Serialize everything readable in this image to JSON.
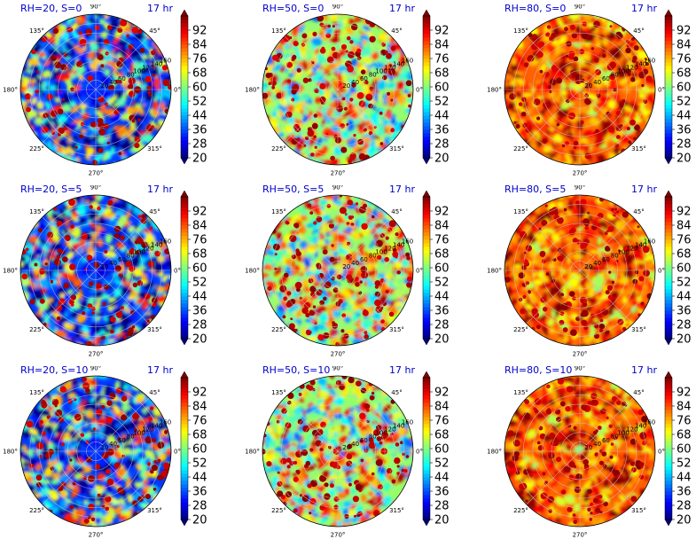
{
  "chart_data": [
    {
      "type": "heatmap",
      "projection": "polar",
      "title": "RH=20, S=0",
      "time_label": "17 hr",
      "humidity": 20,
      "s": 0
    },
    {
      "type": "heatmap",
      "projection": "polar",
      "title": "RH=50, S=0",
      "time_label": "17 hr",
      "humidity": 50,
      "s": 0
    },
    {
      "type": "heatmap",
      "projection": "polar",
      "title": "RH=80, S=0",
      "time_label": "17 hr",
      "humidity": 80,
      "s": 0
    },
    {
      "type": "heatmap",
      "projection": "polar",
      "title": "RH=20, S=5",
      "time_label": "17 hr",
      "humidity": 20,
      "s": 5
    },
    {
      "type": "heatmap",
      "projection": "polar",
      "title": "RH=50, S=5",
      "time_label": "17 hr",
      "humidity": 50,
      "s": 5
    },
    {
      "type": "heatmap",
      "projection": "polar",
      "title": "RH=80, S=5",
      "time_label": "17 hr",
      "humidity": 80,
      "s": 5
    },
    {
      "type": "heatmap",
      "projection": "polar",
      "title": "RH=20, S=10",
      "time_label": "17 hr",
      "humidity": 20,
      "s": 10
    },
    {
      "type": "heatmap",
      "projection": "polar",
      "title": "RH=50, S=10",
      "time_label": "17 hr",
      "humidity": 50,
      "s": 10
    },
    {
      "type": "heatmap",
      "projection": "polar",
      "title": "RH=80, S=10",
      "time_label": "17 hr",
      "humidity": 80,
      "s": 10
    }
  ],
  "common": {
    "angle_ticks": [
      "0°",
      "45°",
      "90°",
      "135°",
      "180°",
      "225°",
      "270°",
      "315°"
    ],
    "radial_ticks": [
      "20",
      "40",
      "60",
      "80",
      "100",
      "120",
      "140",
      "160"
    ],
    "radial_range": [
      0,
      160
    ],
    "colorbar": {
      "ticks": [
        "20",
        "28",
        "36",
        "44",
        "52",
        "60",
        "68",
        "76",
        "84",
        "92"
      ],
      "range": [
        20,
        100
      ],
      "colormap": "jet",
      "extend": "both"
    }
  }
}
